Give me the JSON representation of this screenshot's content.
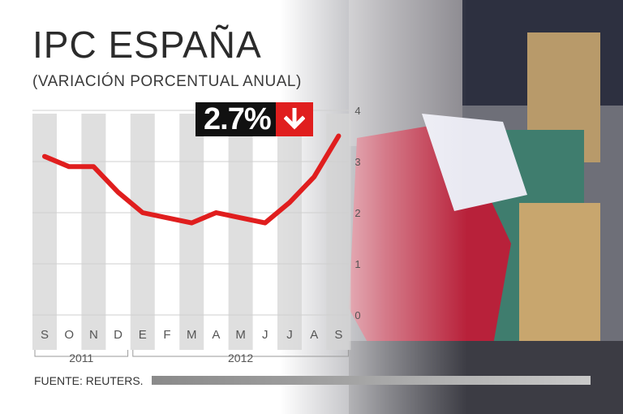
{
  "title": "IPC ESPAÑA",
  "subtitle": "(VARIACIÓN PORCENTUAL ANUAL)",
  "badge": {
    "value": "2.7%",
    "icon": "arrow-down-icon",
    "color": "#e01e1e"
  },
  "source": "FUENTE: REUTERS.",
  "colors": {
    "line": "#e01e1e",
    "column": "#d4d4d4",
    "grid": "#cfcfcf",
    "text": "#555555"
  },
  "chart_data": {
    "type": "line",
    "title": "IPC ESPAÑA",
    "subtitle": "(VARIACIÓN PORCENTUAL ANUAL)",
    "categories": [
      "S",
      "O",
      "N",
      "D",
      "E",
      "F",
      "M",
      "A",
      "M",
      "J",
      "J",
      "A",
      "S"
    ],
    "year_groups": [
      {
        "label": "2011",
        "from": 0,
        "to": 3
      },
      {
        "label": "2012",
        "from": 4,
        "to": 12
      }
    ],
    "series": [
      {
        "values": [
          3.1,
          2.9,
          2.9,
          2.4,
          2.0,
          1.9,
          1.8,
          2.0,
          1.9,
          1.8,
          2.2,
          2.7,
          3.5
        ]
      }
    ],
    "yticks": [
      0,
      1,
      2,
      3,
      4
    ],
    "ylim": [
      0,
      4
    ],
    "grid": true,
    "y_axis_side": "right"
  }
}
